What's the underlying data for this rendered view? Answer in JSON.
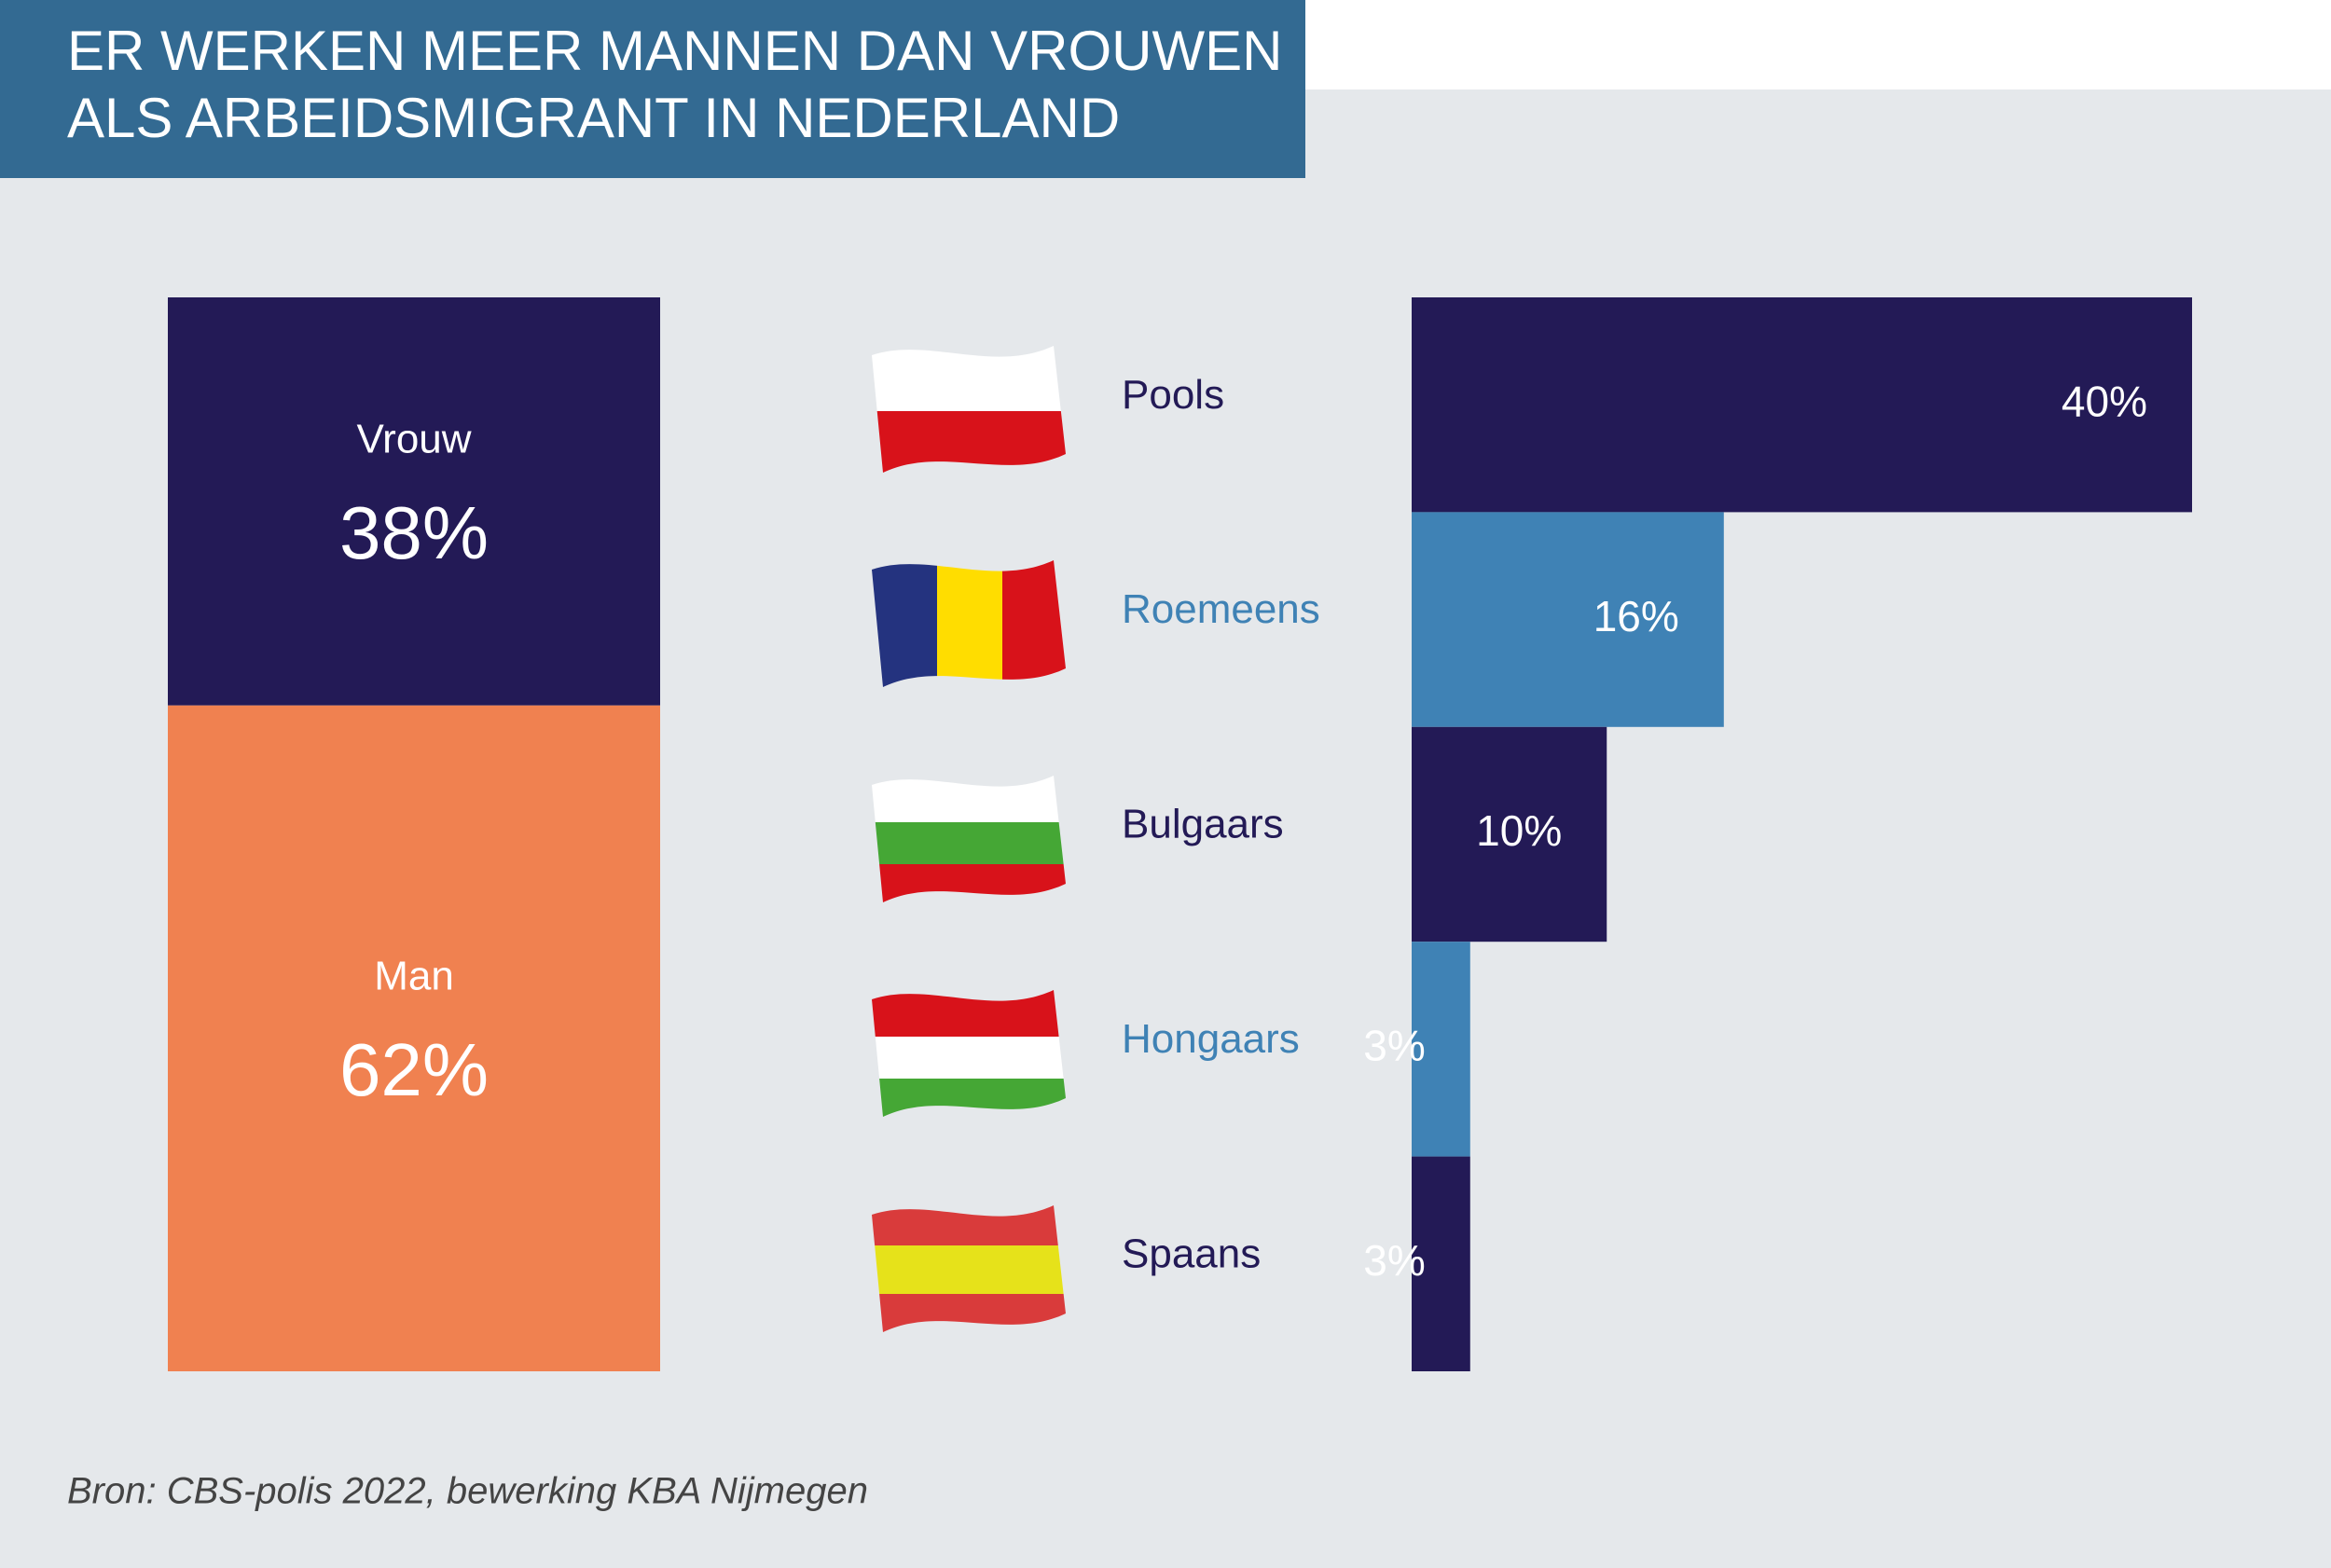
{
  "title_lines": [
    "ER WERKEN MEER MANNEN DAN VROUWEN",
    "ALS ARBEIDSMIGRANT IN NEDERLAND"
  ],
  "source": "Bron: CBS-polis 2022, bewerking KBA Nijmegen",
  "chart_data": [
    {
      "type": "stacked",
      "series": [
        {
          "name": "Vrouw",
          "color": "#231a56",
          "values": [
            38
          ],
          "value_labels": [
            "38%"
          ]
        },
        {
          "name": "Man",
          "color": "#f08150",
          "values": [
            62
          ],
          "value_labels": [
            "62%"
          ]
        }
      ]
    },
    {
      "type": "hbar",
      "categories": [
        "Pools",
        "Roemeens",
        "Bulgaars",
        "Hongaars",
        "Spaans"
      ],
      "values": [
        40,
        16,
        10,
        3,
        3
      ],
      "value_labels": [
        "40%",
        "16%",
        "10%",
        "3%",
        "3%"
      ],
      "colors": [
        "#231a56",
        "#3f82b5",
        "#231a56",
        "#3f82b5",
        "#231a56"
      ]
    }
  ]
}
